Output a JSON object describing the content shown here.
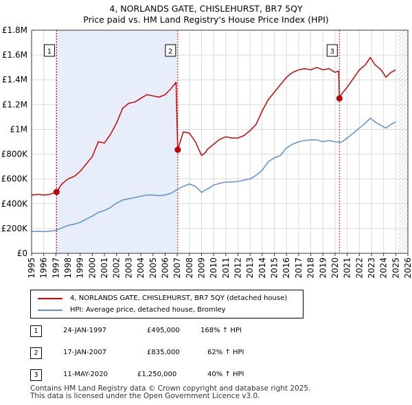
{
  "chart_data": {
    "type": "line",
    "title": "4, NORLANDS GATE, CHISLEHURST, BR7 5QY",
    "subtitle": "Price paid vs. HM Land Registry's House Price Index (HPI)",
    "xlabel": "",
    "ylabel": "",
    "xlim": [
      1995,
      2026
    ],
    "ylim": [
      0,
      1800000
    ],
    "x_ticks": [
      "1995",
      "1996",
      "1997",
      "1998",
      "1999",
      "2000",
      "2001",
      "2002",
      "2003",
      "2004",
      "2005",
      "2006",
      "2007",
      "2008",
      "2009",
      "2010",
      "2011",
      "2012",
      "2013",
      "2014",
      "2015",
      "2016",
      "2017",
      "2018",
      "2019",
      "2020",
      "2021",
      "2022",
      "2023",
      "2024",
      "2025",
      "2026"
    ],
    "y_ticks": [
      {
        "value": 0,
        "label": "£0"
      },
      {
        "value": 200000,
        "label": "£200K"
      },
      {
        "value": 400000,
        "label": "£400K"
      },
      {
        "value": 600000,
        "label": "£600K"
      },
      {
        "value": 800000,
        "label": "£800K"
      },
      {
        "value": 1000000,
        "label": "£1M"
      },
      {
        "value": 1200000,
        "label": "£1.2M"
      },
      {
        "value": 1400000,
        "label": "£1.4M"
      },
      {
        "value": 1600000,
        "label": "£1.6M"
      },
      {
        "value": 1800000,
        "label": "£1.8M"
      }
    ],
    "grid": true,
    "series": [
      {
        "name": "4, NORLANDS GATE, CHISLEHURST, BR7 5QY (detached house)",
        "color": "#cc0000",
        "x": [
          1995.0,
          1995.5,
          1996.0,
          1996.5,
          1997.06,
          1997.5,
          1998.0,
          1998.5,
          1999.0,
          1999.5,
          2000.0,
          2000.5,
          2001.0,
          2001.5,
          2002.0,
          2002.5,
          2003.0,
          2003.5,
          2004.0,
          2004.5,
          2005.0,
          2005.5,
          2006.0,
          2006.5,
          2006.9,
          2007.04,
          2007.5,
          2008.0,
          2008.5,
          2009.0,
          2009.3,
          2009.5,
          2010.0,
          2010.5,
          2011.0,
          2011.5,
          2012.0,
          2012.5,
          2013.0,
          2013.5,
          2014.0,
          2014.5,
          2015.0,
          2015.5,
          2016.0,
          2016.5,
          2017.0,
          2017.5,
          2018.0,
          2018.5,
          2019.0,
          2019.5,
          2020.0,
          2020.3,
          2020.36,
          2020.5,
          2021.0,
          2021.5,
          2022.0,
          2022.5,
          2022.9,
          2023.3,
          2023.8,
          2024.2,
          2024.6,
          2025.0
        ],
        "values": [
          470000,
          475000,
          470000,
          475000,
          495000,
          560000,
          600000,
          620000,
          660000,
          720000,
          780000,
          900000,
          890000,
          960000,
          1050000,
          1170000,
          1210000,
          1220000,
          1250000,
          1280000,
          1270000,
          1260000,
          1280000,
          1330000,
          1380000,
          835000,
          980000,
          970000,
          900000,
          790000,
          810000,
          840000,
          880000,
          920000,
          940000,
          930000,
          930000,
          950000,
          990000,
          1040000,
          1150000,
          1240000,
          1300000,
          1360000,
          1420000,
          1460000,
          1480000,
          1490000,
          1480000,
          1500000,
          1480000,
          1490000,
          1460000,
          1470000,
          1250000,
          1280000,
          1340000,
          1410000,
          1480000,
          1520000,
          1580000,
          1520000,
          1480000,
          1420000,
          1460000,
          1480000
        ]
      },
      {
        "name": "HPI: Average price, detached house, Bromley",
        "color": "#5b8fd4",
        "x": [
          1995.0,
          1995.5,
          1996.0,
          1996.5,
          1997.0,
          1997.5,
          1998.0,
          1998.5,
          1999.0,
          1999.5,
          2000.0,
          2000.5,
          2001.0,
          2001.5,
          2002.0,
          2002.5,
          2003.0,
          2003.5,
          2004.0,
          2004.5,
          2005.0,
          2005.5,
          2006.0,
          2006.5,
          2007.0,
          2007.5,
          2008.0,
          2008.5,
          2009.0,
          2009.3,
          2009.7,
          2010.0,
          2010.5,
          2011.0,
          2011.5,
          2012.0,
          2012.5,
          2013.0,
          2013.5,
          2014.0,
          2014.5,
          2015.0,
          2015.5,
          2016.0,
          2016.5,
          2017.0,
          2017.5,
          2018.0,
          2018.5,
          2019.0,
          2019.5,
          2020.0,
          2020.5,
          2021.0,
          2021.5,
          2022.0,
          2022.5,
          2022.9,
          2023.3,
          2023.8,
          2024.2,
          2024.6,
          2025.0
        ],
        "values": [
          175000,
          178000,
          175000,
          178000,
          185000,
          205000,
          225000,
          235000,
          250000,
          275000,
          300000,
          330000,
          345000,
          370000,
          405000,
          430000,
          440000,
          450000,
          460000,
          470000,
          470000,
          465000,
          470000,
          485000,
          515000,
          540000,
          560000,
          540000,
          490000,
          510000,
          530000,
          550000,
          565000,
          575000,
          575000,
          580000,
          590000,
          600000,
          630000,
          670000,
          740000,
          770000,
          790000,
          850000,
          880000,
          900000,
          910000,
          915000,
          915000,
          900000,
          910000,
          900000,
          895000,
          930000,
          970000,
          1010000,
          1050000,
          1090000,
          1060000,
          1030000,
          1010000,
          1040000,
          1060000
        ]
      }
    ],
    "sales": [
      {
        "label": "1",
        "year": 1997.06,
        "price": 495000
      },
      {
        "label": "2",
        "year": 2007.04,
        "price": 835000
      },
      {
        "label": "3",
        "year": 2020.36,
        "price": 1250000
      }
    ],
    "hatched_region": {
      "from": 2025.2,
      "to": 2026
    }
  },
  "legend": {
    "property": "4, NORLANDS GATE, CHISLEHURST, BR7 5QY (detached house)",
    "hpi": "HPI: Average price, detached house, Bromley"
  },
  "transactions": [
    {
      "num": "1",
      "date": "24-JAN-1997",
      "price": "£495,000",
      "hpi": "168% ↑ HPI"
    },
    {
      "num": "2",
      "date": "17-JAN-2007",
      "price": "£835,000",
      "hpi": "62% ↑ HPI"
    },
    {
      "num": "3",
      "date": "11-MAY-2020",
      "price": "£1,250,000",
      "hpi": "40% ↑ HPI"
    }
  ],
  "footer": {
    "line1": "Contains HM Land Registry data © Crown copyright and database right 2025.",
    "line2": "This data is licensed under the Open Government Licence v3.0."
  }
}
